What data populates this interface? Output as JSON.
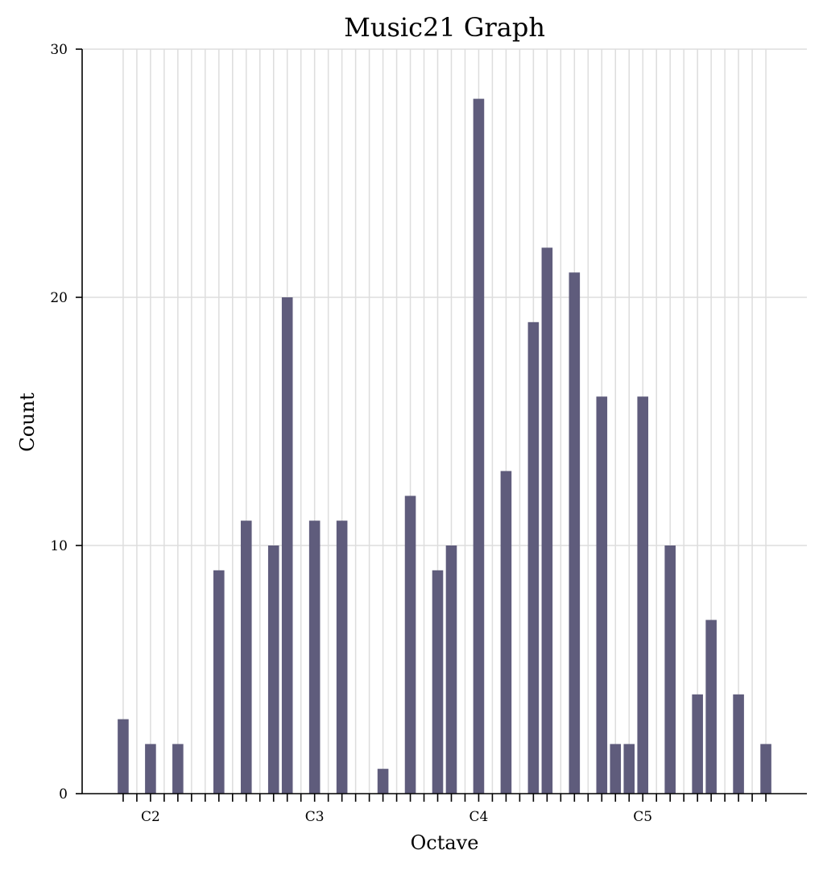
{
  "chart_data": {
    "type": "bar",
    "title": "Music21 Graph",
    "xlabel": "Octave",
    "ylabel": "Count",
    "ylim": [
      0,
      30
    ],
    "yticks": [
      0,
      10,
      20,
      30
    ],
    "x_range": [
      31,
      84
    ],
    "x_major_ticks": [
      {
        "value": 36,
        "label": "C2"
      },
      {
        "value": 48,
        "label": "C3"
      },
      {
        "value": 60,
        "label": "C4"
      },
      {
        "value": 72,
        "label": "C5"
      }
    ],
    "x_minor_ticks": [
      34,
      35,
      37,
      38,
      39,
      40,
      41,
      42,
      43,
      44,
      45,
      46,
      47,
      49,
      50,
      51,
      52,
      53,
      54,
      55,
      56,
      57,
      58,
      59,
      61,
      62,
      63,
      64,
      65,
      66,
      67,
      68,
      69,
      70,
      71,
      73,
      74,
      75,
      76,
      77,
      78,
      79,
      80,
      81
    ],
    "x_gridlines": [
      34,
      35,
      36,
      37,
      38,
      39,
      40,
      41,
      42,
      43,
      44,
      45,
      46,
      47,
      48,
      49,
      50,
      51,
      52,
      53,
      54,
      55,
      56,
      57,
      58,
      59,
      60,
      61,
      62,
      63,
      64,
      65,
      66,
      67,
      68,
      69,
      70,
      71,
      72,
      73,
      74,
      75,
      76,
      77,
      78,
      79,
      80,
      81
    ],
    "bars": [
      {
        "x": 34,
        "value": 3
      },
      {
        "x": 36,
        "value": 2
      },
      {
        "x": 38,
        "value": 2
      },
      {
        "x": 41,
        "value": 9
      },
      {
        "x": 43,
        "value": 11
      },
      {
        "x": 45,
        "value": 10
      },
      {
        "x": 46,
        "value": 20
      },
      {
        "x": 48,
        "value": 11
      },
      {
        "x": 50,
        "value": 11
      },
      {
        "x": 53,
        "value": 1
      },
      {
        "x": 55,
        "value": 12
      },
      {
        "x": 57,
        "value": 9
      },
      {
        "x": 58,
        "value": 10
      },
      {
        "x": 60,
        "value": 28
      },
      {
        "x": 62,
        "value": 13
      },
      {
        "x": 64,
        "value": 19
      },
      {
        "x": 65,
        "value": 22
      },
      {
        "x": 67,
        "value": 21
      },
      {
        "x": 69,
        "value": 16
      },
      {
        "x": 70,
        "value": 2
      },
      {
        "x": 71,
        "value": 2
      },
      {
        "x": 72,
        "value": 16
      },
      {
        "x": 74,
        "value": 10
      },
      {
        "x": 76,
        "value": 4
      },
      {
        "x": 77,
        "value": 7
      },
      {
        "x": 79,
        "value": 4
      },
      {
        "x": 81,
        "value": 2
      }
    ],
    "bar_color": "#5f5c7c",
    "grid": true,
    "legend": "none"
  }
}
